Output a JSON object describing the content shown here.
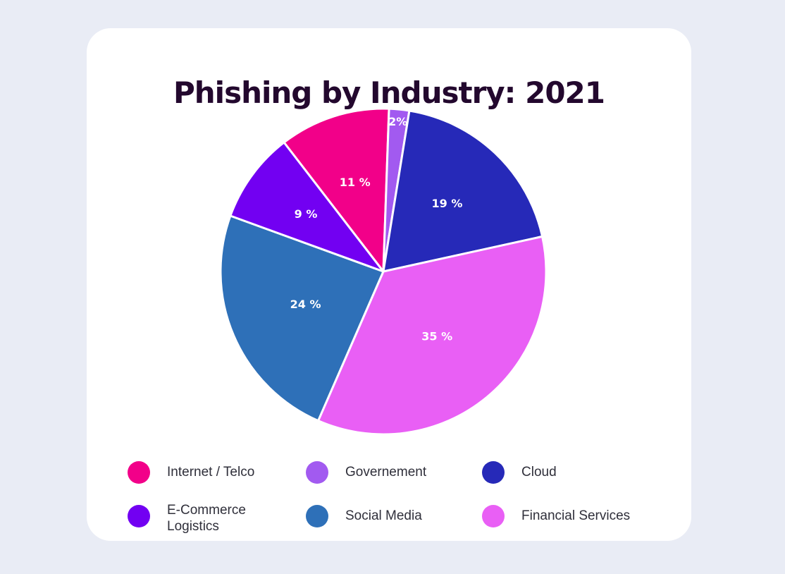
{
  "chart_data": {
    "type": "pie",
    "title": "Phishing  by Industry: 2021",
    "categories": [
      "Internet / Telco",
      "Governement",
      "Cloud",
      "Financial Services",
      "Social Media",
      "E-Commerce Logistics"
    ],
    "values": [
      11,
      2,
      19,
      35,
      24,
      9
    ],
    "labels": [
      "11 %",
      "2%",
      "19 %",
      "35 %",
      "24 %",
      "9 %"
    ],
    "colors": [
      "#f20089",
      "#a25af0",
      "#2629b8",
      "#e95ff5",
      "#2e70b8",
      "#7200f2"
    ],
    "legend_position": "bottom"
  },
  "legend": [
    {
      "label": "Internet / Telco",
      "color": "#f20089"
    },
    {
      "label": "Governement",
      "color": "#a25af0"
    },
    {
      "label": "Cloud",
      "color": "#2629b8"
    },
    {
      "label": "E-Commerce\nLogistics",
      "color": "#7200f2"
    },
    {
      "label": "Social Media",
      "color": "#2e70b8"
    },
    {
      "label": "Financial Services",
      "color": "#e95ff5"
    }
  ]
}
